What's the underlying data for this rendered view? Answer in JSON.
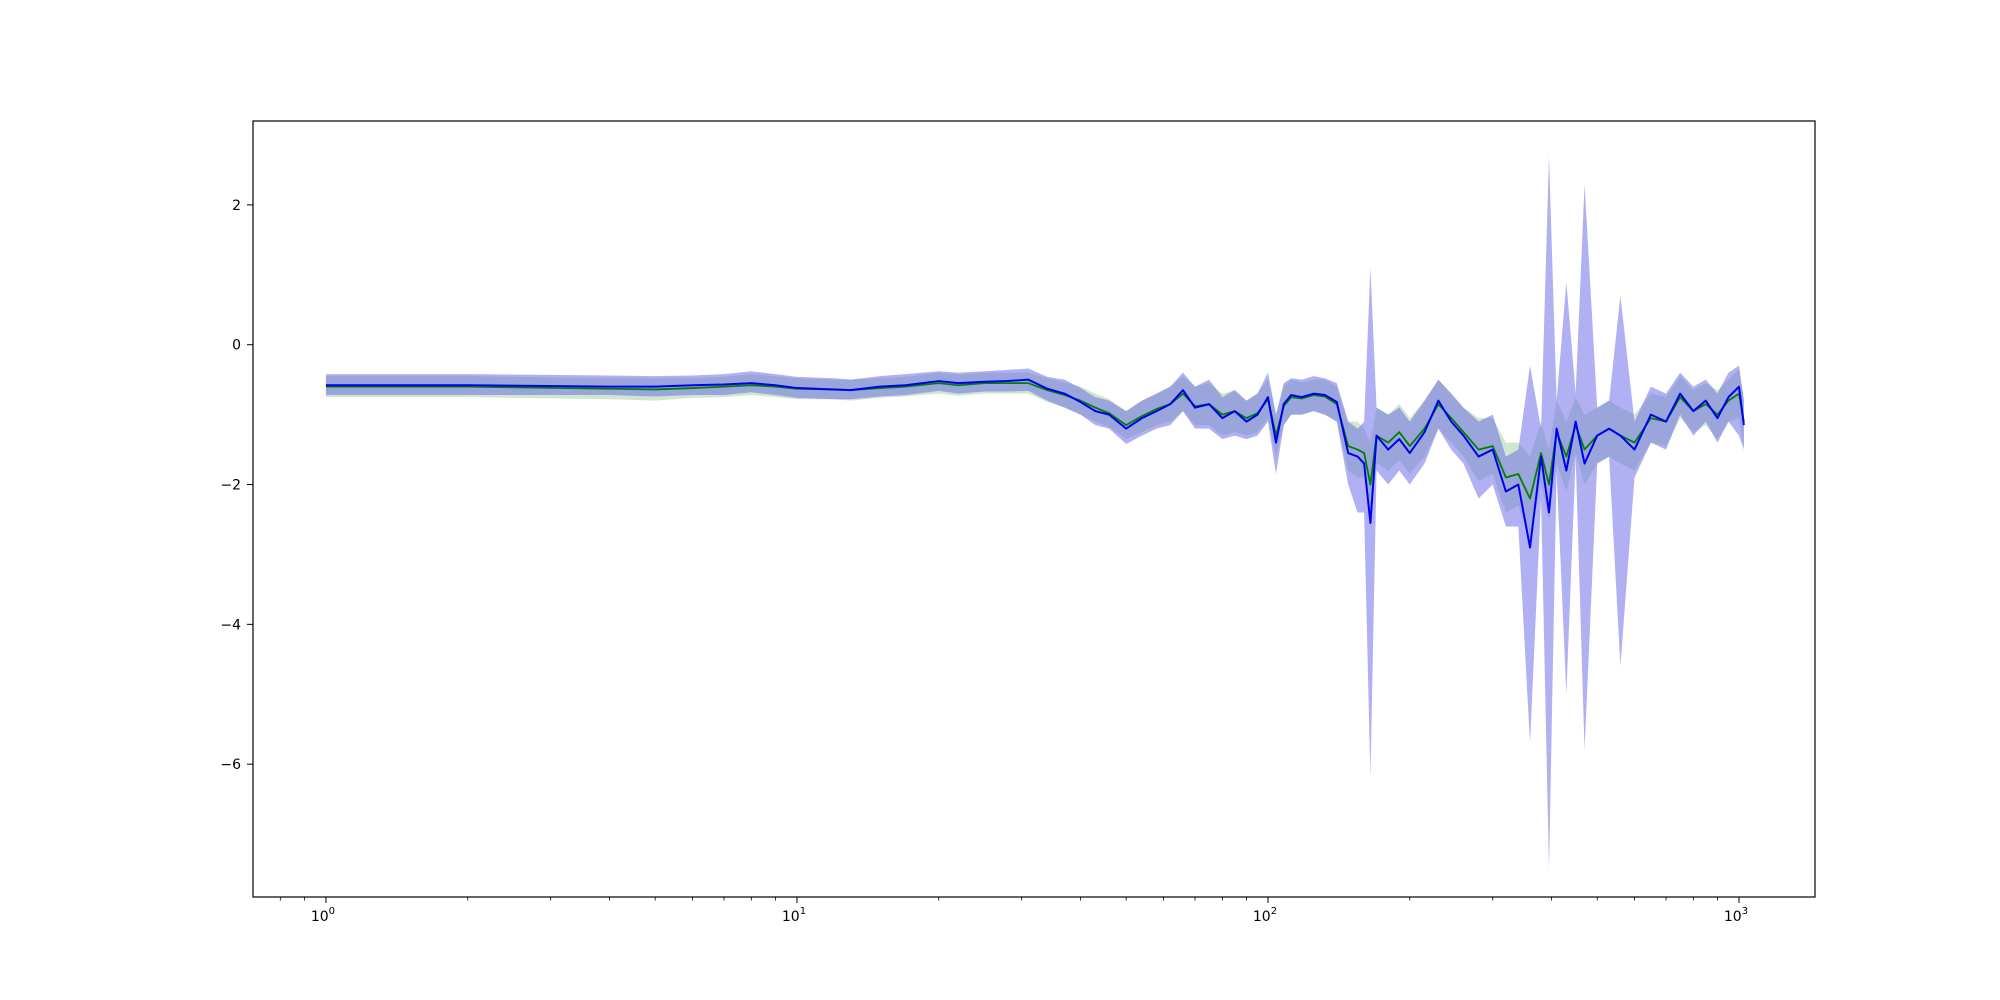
{
  "chart_data": {
    "type": "line",
    "title": "",
    "xlabel": "",
    "ylabel": "",
    "x_scale": "log",
    "xlim": [
      0.7,
      1450
    ],
    "ylim": [
      -7.9,
      3.2
    ],
    "grid": false,
    "x_ticks": [
      {
        "value": 1,
        "base": "10",
        "exp": "0"
      },
      {
        "value": 10,
        "base": "10",
        "exp": "1"
      },
      {
        "value": 100,
        "base": "10",
        "exp": "2"
      },
      {
        "value": 1000,
        "base": "10",
        "exp": "3"
      }
    ],
    "y_ticks": [
      {
        "value": 2,
        "label": "2"
      },
      {
        "value": 0,
        "label": "0"
      },
      {
        "value": -2,
        "label": "−2"
      },
      {
        "value": -4,
        "label": "−4"
      },
      {
        "value": -6,
        "label": "−6"
      }
    ],
    "x": [
      1,
      2,
      4,
      5,
      6,
      7,
      8,
      9,
      10,
      12,
      13,
      15,
      17,
      20,
      22,
      25,
      28,
      31,
      34,
      37,
      40,
      43,
      46,
      50,
      54,
      58,
      62,
      66,
      70,
      75,
      80,
      85,
      90,
      95,
      100,
      104,
      108,
      112,
      118,
      125,
      132,
      140,
      148,
      155,
      160,
      165,
      170,
      180,
      190,
      200,
      215,
      230,
      245,
      260,
      280,
      300,
      320,
      340,
      360,
      380,
      395,
      410,
      430,
      450,
      470,
      500,
      530,
      560,
      600,
      650,
      700,
      750,
      800,
      850,
      900,
      950,
      1000,
      1024
    ],
    "series": [
      {
        "color": "#0000ee",
        "band_color": "#6f6fe8",
        "y": [
          -0.58,
          -0.58,
          -0.6,
          -0.6,
          -0.58,
          -0.57,
          -0.55,
          -0.58,
          -0.62,
          -0.64,
          -0.65,
          -0.6,
          -0.58,
          -0.52,
          -0.55,
          -0.53,
          -0.52,
          -0.5,
          -0.63,
          -0.7,
          -0.82,
          -0.95,
          -1.0,
          -1.2,
          -1.05,
          -0.95,
          -0.85,
          -0.65,
          -0.9,
          -0.85,
          -1.05,
          -0.95,
          -1.1,
          -1.0,
          -0.75,
          -1.4,
          -0.85,
          -0.72,
          -0.75,
          -0.7,
          -0.72,
          -0.82,
          -1.55,
          -1.6,
          -1.7,
          -2.55,
          -1.3,
          -1.5,
          -1.35,
          -1.55,
          -1.25,
          -0.8,
          -1.1,
          -1.3,
          -1.6,
          -1.5,
          -2.1,
          -2.0,
          -2.9,
          -1.6,
          -2.4,
          -1.2,
          -1.8,
          -1.1,
          -1.7,
          -1.3,
          -1.2,
          -1.3,
          -1.5,
          -1.0,
          -1.1,
          -0.7,
          -0.95,
          -0.8,
          -1.05,
          -0.75,
          -0.6,
          -1.15
        ],
        "lower": [
          -0.72,
          -0.72,
          -0.72,
          -0.74,
          -0.72,
          -0.72,
          -0.68,
          -0.72,
          -0.76,
          -0.78,
          -0.78,
          -0.74,
          -0.72,
          -0.66,
          -0.7,
          -0.67,
          -0.67,
          -0.66,
          -0.8,
          -0.9,
          -1.0,
          -1.15,
          -1.2,
          -1.42,
          -1.3,
          -1.2,
          -1.15,
          -0.95,
          -1.2,
          -1.2,
          -1.35,
          -1.3,
          -1.35,
          -1.3,
          -1.1,
          -1.85,
          -1.15,
          -1.0,
          -1.0,
          -0.95,
          -1.0,
          -1.1,
          -2.0,
          -2.4,
          -2.4,
          -6.2,
          -1.8,
          -2.0,
          -1.8,
          -2.0,
          -1.7,
          -1.2,
          -1.5,
          -1.7,
          -2.2,
          -2.0,
          -2.6,
          -2.6,
          -5.7,
          -2.2,
          -7.5,
          -1.8,
          -5.0,
          -1.6,
          -5.8,
          -1.7,
          -1.6,
          -4.6,
          -1.9,
          -1.4,
          -1.5,
          -1.0,
          -1.3,
          -1.1,
          -1.4,
          -1.1,
          -1.3,
          -1.5
        ],
        "upper": [
          -0.42,
          -0.42,
          -0.44,
          -0.45,
          -0.44,
          -0.42,
          -0.38,
          -0.42,
          -0.46,
          -0.48,
          -0.5,
          -0.45,
          -0.42,
          -0.38,
          -0.4,
          -0.38,
          -0.36,
          -0.34,
          -0.46,
          -0.5,
          -0.62,
          -0.75,
          -0.8,
          -0.95,
          -0.8,
          -0.7,
          -0.6,
          -0.4,
          -0.6,
          -0.5,
          -0.75,
          -0.65,
          -0.8,
          -0.7,
          -0.4,
          -1.0,
          -0.55,
          -0.48,
          -0.5,
          -0.45,
          -0.48,
          -0.55,
          -1.1,
          -1.2,
          -1.1,
          1.1,
          -0.9,
          -1.0,
          -0.9,
          -1.1,
          -0.8,
          -0.5,
          -0.7,
          -0.9,
          -1.1,
          -1.0,
          -1.6,
          -1.5,
          -0.3,
          -1.2,
          2.7,
          -0.8,
          0.9,
          -0.7,
          2.3,
          -0.9,
          -0.8,
          0.7,
          -1.1,
          -0.6,
          -0.7,
          -0.4,
          -0.6,
          -0.5,
          -0.7,
          -0.4,
          -0.3,
          -0.8
        ]
      },
      {
        "color": "#008000",
        "band_color": "#9ed09e",
        "y": [
          -0.6,
          -0.6,
          -0.63,
          -0.64,
          -0.62,
          -0.6,
          -0.58,
          -0.6,
          -0.63,
          -0.64,
          -0.65,
          -0.62,
          -0.6,
          -0.55,
          -0.58,
          -0.55,
          -0.55,
          -0.55,
          -0.65,
          -0.72,
          -0.8,
          -0.9,
          -0.98,
          -1.15,
          -1.02,
          -0.92,
          -0.85,
          -0.7,
          -0.88,
          -0.85,
          -1.0,
          -0.95,
          -1.05,
          -0.98,
          -0.78,
          -1.3,
          -0.88,
          -0.75,
          -0.77,
          -0.72,
          -0.74,
          -0.85,
          -1.45,
          -1.5,
          -1.55,
          -2.0,
          -1.3,
          -1.4,
          -1.25,
          -1.45,
          -1.2,
          -0.85,
          -1.05,
          -1.25,
          -1.5,
          -1.45,
          -1.9,
          -1.85,
          -2.2,
          -1.55,
          -2.0,
          -1.25,
          -1.6,
          -1.15,
          -1.5,
          -1.3,
          -1.2,
          -1.3,
          -1.4,
          -1.05,
          -1.1,
          -0.75,
          -0.95,
          -0.85,
          -1.0,
          -0.8,
          -0.7,
          -1.1
        ],
        "lower": [
          -0.75,
          -0.75,
          -0.78,
          -0.8,
          -0.76,
          -0.75,
          -0.72,
          -0.75,
          -0.78,
          -0.78,
          -0.8,
          -0.76,
          -0.74,
          -0.7,
          -0.73,
          -0.7,
          -0.7,
          -0.7,
          -0.82,
          -0.9,
          -1.0,
          -1.1,
          -1.18,
          -1.35,
          -1.25,
          -1.15,
          -1.1,
          -0.95,
          -1.15,
          -1.15,
          -1.3,
          -1.25,
          -1.3,
          -1.25,
          -1.05,
          -1.6,
          -1.15,
          -1.0,
          -1.0,
          -0.95,
          -1.0,
          -1.1,
          -1.8,
          -1.9,
          -1.9,
          -2.6,
          -1.7,
          -1.8,
          -1.65,
          -1.85,
          -1.6,
          -1.2,
          -1.4,
          -1.6,
          -1.95,
          -1.85,
          -2.4,
          -2.3,
          -2.8,
          -2.0,
          -2.5,
          -1.7,
          -2.1,
          -1.55,
          -2.0,
          -1.7,
          -1.6,
          -1.7,
          -1.8,
          -1.4,
          -1.45,
          -1.05,
          -1.25,
          -1.15,
          -1.35,
          -1.1,
          -1.05,
          -1.45
        ],
        "upper": [
          -0.45,
          -0.45,
          -0.48,
          -0.48,
          -0.48,
          -0.46,
          -0.42,
          -0.45,
          -0.48,
          -0.5,
          -0.5,
          -0.48,
          -0.46,
          -0.4,
          -0.43,
          -0.4,
          -0.4,
          -0.4,
          -0.48,
          -0.54,
          -0.6,
          -0.7,
          -0.78,
          -0.95,
          -0.8,
          -0.7,
          -0.6,
          -0.45,
          -0.6,
          -0.55,
          -0.7,
          -0.65,
          -0.8,
          -0.7,
          -0.5,
          -1.0,
          -0.6,
          -0.5,
          -0.54,
          -0.5,
          -0.5,
          -0.6,
          -1.1,
          -1.1,
          -1.2,
          -1.4,
          -0.9,
          -1.0,
          -0.85,
          -1.05,
          -0.8,
          -0.5,
          -0.7,
          -0.9,
          -1.05,
          -1.05,
          -1.4,
          -1.4,
          -1.6,
          -1.1,
          -1.5,
          -0.8,
          -1.1,
          -0.75,
          -1.0,
          -0.9,
          -0.8,
          -0.9,
          -1.0,
          -0.7,
          -0.75,
          -0.45,
          -0.65,
          -0.55,
          -0.65,
          -0.5,
          -0.35,
          -0.75
        ]
      }
    ]
  }
}
